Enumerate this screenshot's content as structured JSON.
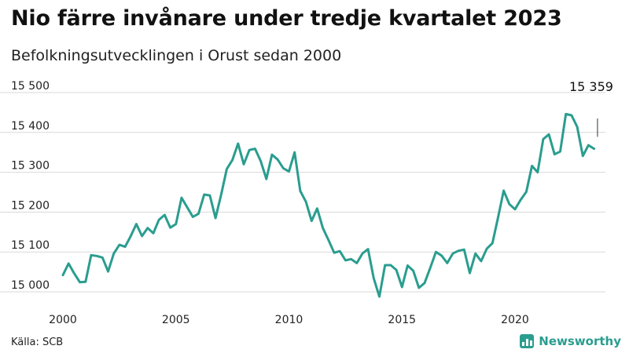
{
  "header": {
    "title": "Nio färre invånare under tredje kvartalet 2023",
    "subtitle": "Befolkningsutvecklingen i Orust sedan 2000"
  },
  "footer": {
    "source": "Källa: SCB",
    "brand": "Newsworthy",
    "brand_icon": "bar-chart-icon"
  },
  "colors": {
    "line": "#2a9d8f",
    "grid": "#d9d9d9",
    "text": "#111111"
  },
  "chart_data": {
    "type": "line",
    "title": "Nio färre invånare under tredje kvartalet 2023",
    "subtitle": "Befolkningsutvecklingen i Orust sedan 2000",
    "xlabel": "",
    "ylabel": "",
    "x_ticks": [
      "2000",
      "2005",
      "2010",
      "2015",
      "2020"
    ],
    "y_ticks": [
      "15 000",
      "15 100",
      "15 200",
      "15 300",
      "15 400",
      "15 500"
    ],
    "xlim": [
      2000,
      2024
    ],
    "ylim": [
      14975,
      15525
    ],
    "grid": true,
    "annotation": {
      "text": "15 359",
      "x": 2023.5,
      "y": 15359
    },
    "series": [
      {
        "values": [
          [
            2000.0,
            15042
          ],
          [
            2000.25,
            15071
          ],
          [
            2000.5,
            15046
          ],
          [
            2000.75,
            15024
          ],
          [
            2001.0,
            15025
          ],
          [
            2001.25,
            15092
          ],
          [
            2001.5,
            15090
          ],
          [
            2001.75,
            15086
          ],
          [
            2002.0,
            15051
          ],
          [
            2002.25,
            15096
          ],
          [
            2002.5,
            15118
          ],
          [
            2002.75,
            15113
          ],
          [
            2003.0,
            15140
          ],
          [
            2003.25,
            15170
          ],
          [
            2003.5,
            15140
          ],
          [
            2003.75,
            15160
          ],
          [
            2004.0,
            15147
          ],
          [
            2004.25,
            15181
          ],
          [
            2004.5,
            15193
          ],
          [
            2004.75,
            15161
          ],
          [
            2005.0,
            15170
          ],
          [
            2005.25,
            15236
          ],
          [
            2005.5,
            15212
          ],
          [
            2005.75,
            15188
          ],
          [
            2006.0,
            15196
          ],
          [
            2006.25,
            15244
          ],
          [
            2006.5,
            15242
          ],
          [
            2006.75,
            15185
          ],
          [
            2007.0,
            15244
          ],
          [
            2007.25,
            15308
          ],
          [
            2007.5,
            15331
          ],
          [
            2007.75,
            15372
          ],
          [
            2008.0,
            15320
          ],
          [
            2008.25,
            15356
          ],
          [
            2008.5,
            15359
          ],
          [
            2008.75,
            15328
          ],
          [
            2009.0,
            15283
          ],
          [
            2009.25,
            15344
          ],
          [
            2009.5,
            15332
          ],
          [
            2009.75,
            15310
          ],
          [
            2010.0,
            15302
          ],
          [
            2010.25,
            15350
          ],
          [
            2010.5,
            15253
          ],
          [
            2010.75,
            15226
          ],
          [
            2011.0,
            15178
          ],
          [
            2011.25,
            15209
          ],
          [
            2011.5,
            15160
          ],
          [
            2011.75,
            15130
          ],
          [
            2012.0,
            15098
          ],
          [
            2012.25,
            15102
          ],
          [
            2012.5,
            15079
          ],
          [
            2012.75,
            15082
          ],
          [
            2013.0,
            15072
          ],
          [
            2013.25,
            15096
          ],
          [
            2013.5,
            15107
          ],
          [
            2013.75,
            15034
          ],
          [
            2014.0,
            14988
          ],
          [
            2014.25,
            15067
          ],
          [
            2014.5,
            15067
          ],
          [
            2014.75,
            15055
          ],
          [
            2015.0,
            15012
          ],
          [
            2015.25,
            15066
          ],
          [
            2015.5,
            15053
          ],
          [
            2015.75,
            15010
          ],
          [
            2016.0,
            15022
          ],
          [
            2016.25,
            15060
          ],
          [
            2016.5,
            15100
          ],
          [
            2016.75,
            15091
          ],
          [
            2017.0,
            15072
          ],
          [
            2017.25,
            15096
          ],
          [
            2017.5,
            15103
          ],
          [
            2017.75,
            15106
          ],
          [
            2018.0,
            15047
          ],
          [
            2018.25,
            15096
          ],
          [
            2018.5,
            15077
          ],
          [
            2018.75,
            15108
          ],
          [
            2019.0,
            15122
          ],
          [
            2019.25,
            15186
          ],
          [
            2019.5,
            15254
          ],
          [
            2019.75,
            15220
          ],
          [
            2020.0,
            15207
          ],
          [
            2020.25,
            15231
          ],
          [
            2020.5,
            15251
          ],
          [
            2020.75,
            15316
          ],
          [
            2021.0,
            15300
          ],
          [
            2021.25,
            15383
          ],
          [
            2021.5,
            15395
          ],
          [
            2021.75,
            15345
          ],
          [
            2022.0,
            15352
          ],
          [
            2022.25,
            15446
          ],
          [
            2022.5,
            15443
          ],
          [
            2022.75,
            15414
          ],
          [
            2023.0,
            15341
          ],
          [
            2023.25,
            15368
          ],
          [
            2023.5,
            15359
          ]
        ]
      }
    ]
  }
}
